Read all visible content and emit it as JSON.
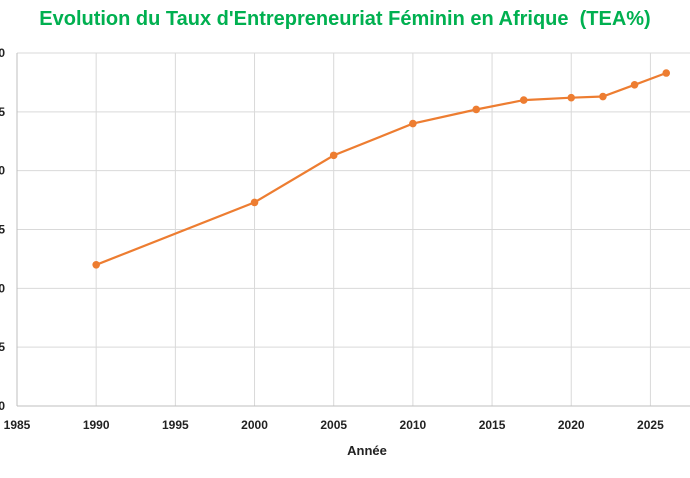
{
  "chart_data": {
    "type": "line",
    "title": "Evolution du Taux d'Entrepreneuriat Féminin en Afrique  (TEA%)",
    "xlabel": "Année",
    "ylabel": "",
    "x_ticks": [
      "1985",
      "1990",
      "1995",
      "2000",
      "2005",
      "2010",
      "2015",
      "2020",
      "2025"
    ],
    "y_ticks": [
      "0",
      "5",
      "0",
      "5",
      "0",
      "5",
      "0"
    ],
    "xlim": [
      1985,
      2027.5
    ],
    "ylim": [
      0,
      30
    ],
    "grid": true,
    "series": [
      {
        "color": "#ed7d31",
        "x": [
          1990,
          2000,
          2005,
          2010,
          2014,
          2017,
          2020,
          2022,
          2024,
          2026
        ],
        "values": [
          12.0,
          17.3,
          21.3,
          24.0,
          25.2,
          26.0,
          26.2,
          26.3,
          27.3,
          28.3
        ]
      }
    ]
  }
}
